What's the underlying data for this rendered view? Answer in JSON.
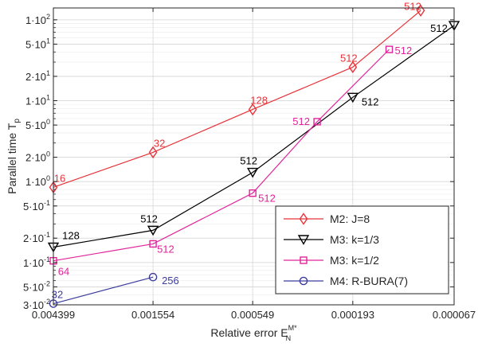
{
  "chart_data": {
    "type": "line",
    "xlabel": "Relative error",
    "xlabel_sym": "E",
    "xlabel_sub": "N",
    "xlabel_sup": "M*",
    "ylabel": "Parallel time",
    "ylabel_sub": "p",
    "x_ticks": [
      "0.004399",
      "0.001554",
      "0.000549",
      "0.000193",
      "0.000067"
    ],
    "x_scale": "log-reversed",
    "y_scale": "log",
    "ylim": [
      0.03,
      140
    ],
    "y_ticks": [
      {
        "v": 0.03,
        "m": "3",
        "e": "-2"
      },
      {
        "v": 0.05,
        "m": "5",
        "e": "-2"
      },
      {
        "v": 0.1,
        "m": "1",
        "e": "-1"
      },
      {
        "v": 0.2,
        "m": "2",
        "e": "-1"
      },
      {
        "v": 0.5,
        "m": "5",
        "e": "-1"
      },
      {
        "v": 1,
        "m": "1",
        "e": "0"
      },
      {
        "v": 2,
        "m": "2",
        "e": "0"
      },
      {
        "v": 5,
        "m": "5",
        "e": "0"
      },
      {
        "v": 10,
        "m": "1",
        "e": "1"
      },
      {
        "v": 20,
        "m": "2",
        "e": "1"
      },
      {
        "v": 50,
        "m": "5",
        "e": "1"
      },
      {
        "v": 100,
        "m": "1",
        "e": "2"
      }
    ],
    "grid": true,
    "legend_position": "bottom-right",
    "series": [
      {
        "name": "M2: J=8",
        "color": "#e8333a",
        "marker": "diamond",
        "points": [
          {
            "x": 0.004399,
            "y": 0.85,
            "label": "16"
          },
          {
            "x": 0.001554,
            "y": 2.3,
            "label": "32"
          },
          {
            "x": 0.000549,
            "y": 7.8,
            "label": "128"
          },
          {
            "x": 0.000193,
            "y": 26,
            "label": "512"
          },
          {
            "x": 9.5e-05,
            "y": 130,
            "label": "512"
          }
        ]
      },
      {
        "name": "M3: k=1/3",
        "color": "#000000",
        "marker": "triangle-down",
        "points": [
          {
            "x": 0.004399,
            "y": 0.155,
            "label": "128"
          },
          {
            "x": 0.001554,
            "y": 0.25,
            "label": "512"
          },
          {
            "x": 0.000549,
            "y": 1.3,
            "label": "512"
          },
          {
            "x": 0.000193,
            "y": 11,
            "label": "512"
          },
          {
            "x": 6.7e-05,
            "y": 85,
            "label": "512"
          }
        ]
      },
      {
        "name": "M3: k=1/2",
        "color": "#e0249a",
        "marker": "square",
        "points": [
          {
            "x": 0.004399,
            "y": 0.105,
            "label": "64"
          },
          {
            "x": 0.001554,
            "y": 0.17,
            "label": "512"
          },
          {
            "x": 0.000549,
            "y": 0.72,
            "label": "512"
          },
          {
            "x": 0.00028,
            "y": 5.5,
            "label": "512"
          },
          {
            "x": 0.000132,
            "y": 43,
            "label": "512"
          }
        ]
      },
      {
        "name": "M4: R-BURA(7)",
        "color": "#3c3c9e",
        "marker": "circle",
        "points": [
          {
            "x": 0.004399,
            "y": 0.031,
            "label": "32"
          },
          {
            "x": 0.001554,
            "y": 0.066,
            "label": "256"
          }
        ]
      }
    ]
  }
}
